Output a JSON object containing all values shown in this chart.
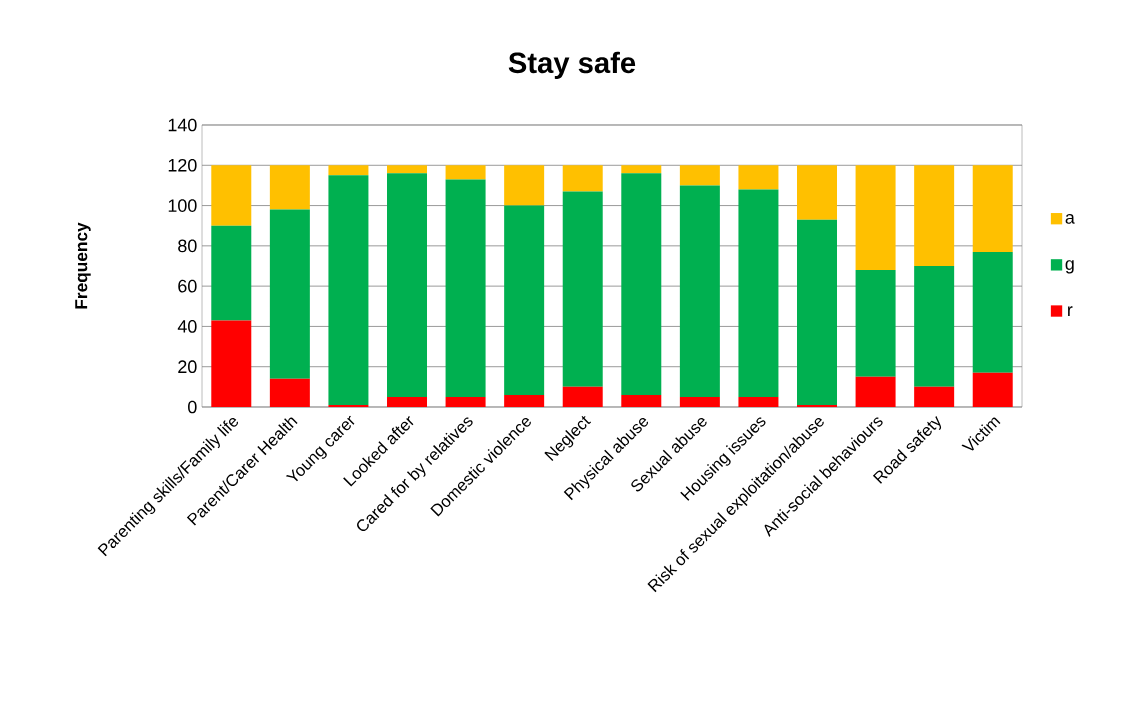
{
  "chart_data": {
    "type": "bar",
    "title": "Stay safe",
    "ylabel": "Frequency",
    "stacked": true,
    "grid": "y",
    "legend": "right",
    "categories": [
      "Parenting skills/Family life",
      "Parent/Carer Health",
      "Young carer",
      "Looked after",
      "Cared for by relatives",
      "Domestic violence",
      "Neglect",
      "Physical abuse",
      "Sexual abuse",
      "Housing issues",
      "Risk of sexual exploitation/abuse",
      "Anti-social behaviours",
      "Road safety",
      "Victim"
    ],
    "ylim": [
      0,
      140
    ],
    "yticks": [
      0,
      20,
      40,
      60,
      80,
      100,
      120,
      140
    ],
    "series": [
      {
        "name": "r",
        "color": "#ff0000",
        "values": [
          43,
          14,
          1,
          5,
          5,
          6,
          10,
          6,
          5,
          5,
          1,
          15,
          10,
          17
        ]
      },
      {
        "name": "g",
        "color": "#00b050",
        "values": [
          47,
          84,
          114,
          111,
          108,
          94,
          97,
          110,
          105,
          103,
          92,
          53,
          60,
          60
        ]
      },
      {
        "name": "a",
        "color": "#ffc000",
        "values": [
          30,
          22,
          5,
          4,
          7,
          20,
          13,
          4,
          10,
          12,
          27,
          52,
          50,
          43
        ]
      }
    ]
  }
}
